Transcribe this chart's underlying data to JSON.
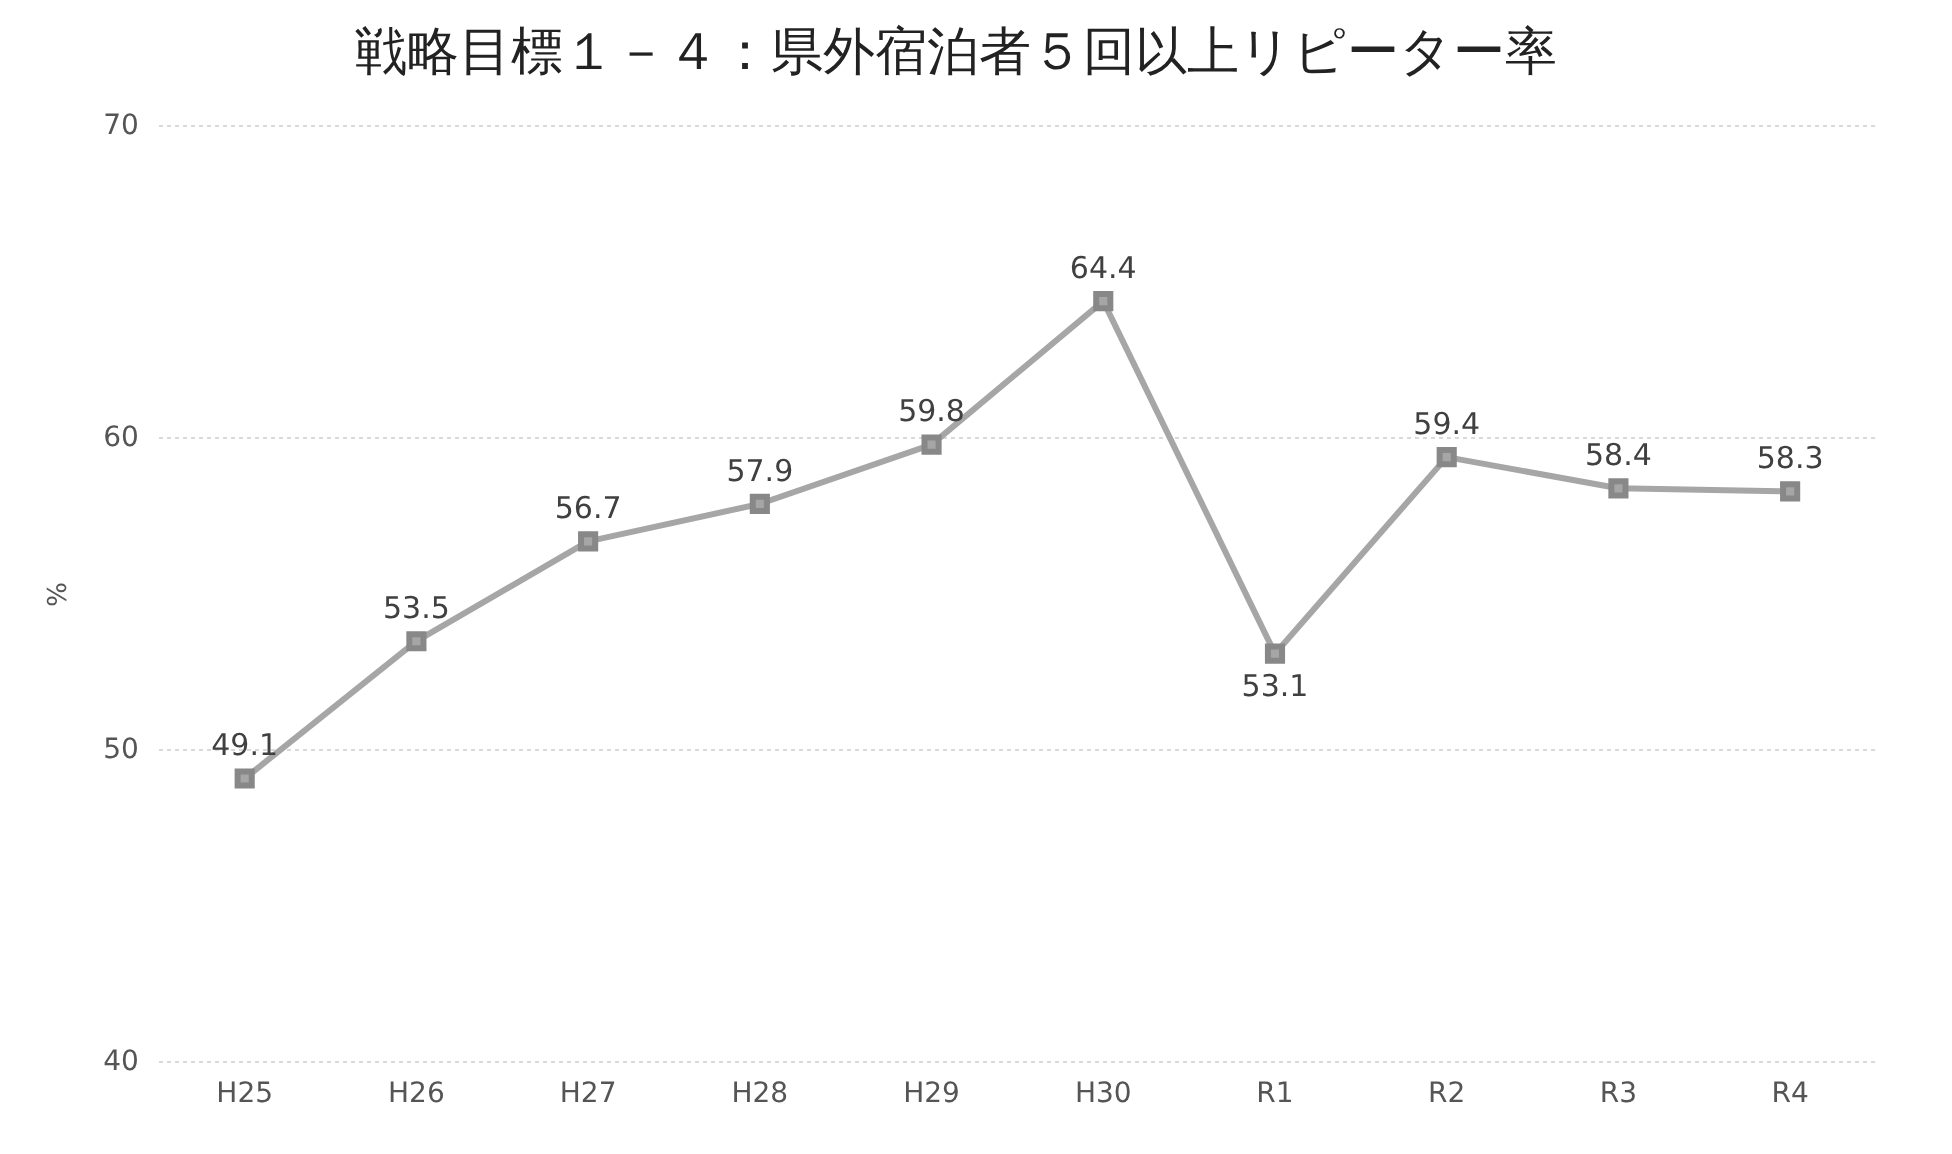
{
  "chart_data": {
    "type": "line",
    "title": "戦略目標１－４：県外宿泊者５回以上リピーター率",
    "ylabel": "%",
    "categories": [
      "H25",
      "H26",
      "H27",
      "H28",
      "H29",
      "H30",
      "R1",
      "R2",
      "R3",
      "R4"
    ],
    "series": [
      {
        "color": "#a6a6a6",
        "values": [
          49.1,
          53.5,
          56.7,
          57.9,
          59.8,
          64.4,
          53.1,
          59.4,
          58.4,
          58.3
        ]
      }
    ],
    "ylim": [
      40,
      70
    ],
    "yticks": [
      40,
      50,
      60,
      70
    ],
    "grid": "y",
    "marker": "square",
    "data_labels": true,
    "legend": false
  }
}
